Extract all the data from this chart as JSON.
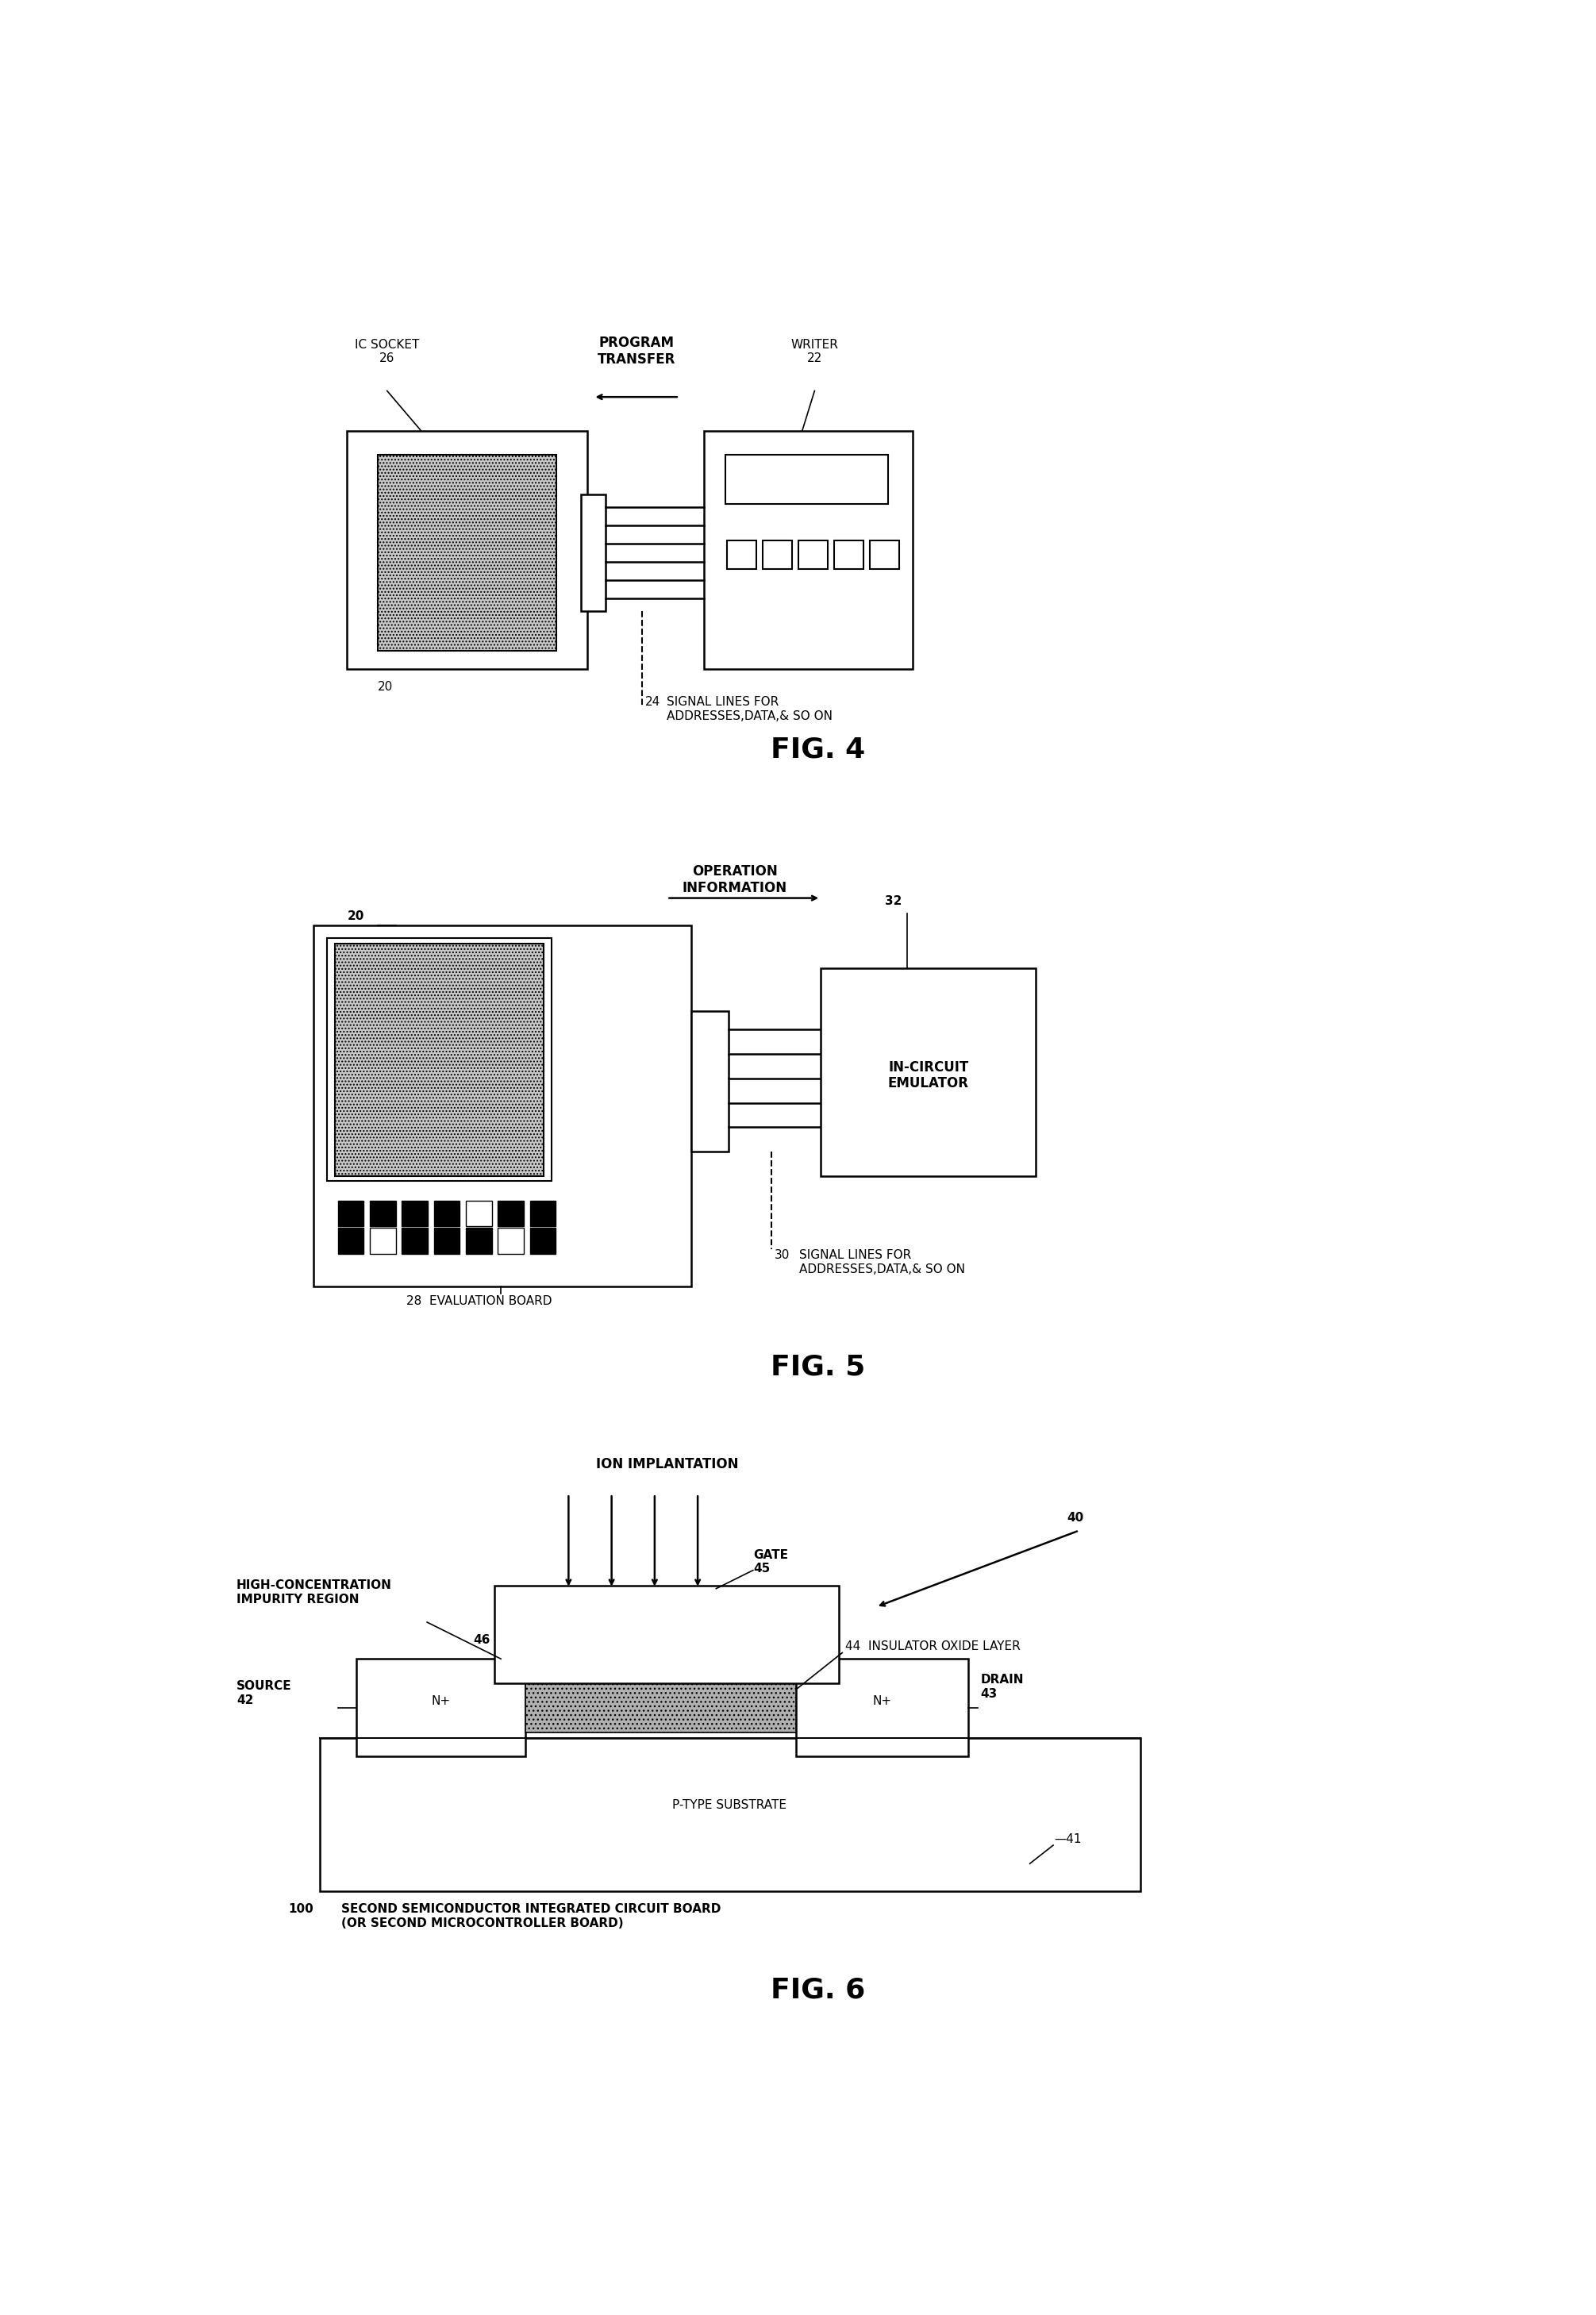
{
  "bg_color": "#ffffff",
  "fig_width": 20.11,
  "fig_height": 29.17,
  "lw": 1.8,
  "font_label": 11,
  "font_bold": 12,
  "font_title": 26,
  "font_num": 11,
  "fig4": {
    "title": "FIG. 4",
    "ic_socket_label": "IC SOCKET\n26",
    "writer_label": "WRITER\n22",
    "program_transfer_label": "PROGRAM\nTRANSFER",
    "signal_lines_label": "SIGNAL LINES FOR\nADDRESSES,DATA,& SO ON",
    "signal_num": "24",
    "board_num": "20"
  },
  "fig5": {
    "title": "FIG. 5",
    "board_num": "20",
    "op_info_label": "OPERATION\nINFORMATION",
    "emulator_num": "32",
    "emulator_label": "IN-CIRCUIT\nEMULATOR",
    "signal_lines_label": "SIGNAL LINES FOR\nADDRESSES,DATA,& SO ON",
    "signal_num": "30",
    "eval_board_label": "28  EVALUATION BOARD"
  },
  "fig6": {
    "title": "FIG. 6",
    "ion_label": "ION IMPLANTATION",
    "high_conc_label": "HIGH-CONCENTRATION\nIMPURITY REGION",
    "gate_label": "GATE\n45",
    "insulator_label": "44  INSULATOR OXIDE LAYER",
    "source_label": "SOURCE\n42",
    "drain_label": "DRAIN\n43",
    "substrate_label": "P-TYPE SUBSTRATE",
    "substrate_num": "41",
    "num_46": "46",
    "num_40": "40",
    "num_100": "100",
    "board_label": "SECOND SEMICONDUCTOR INTEGRATED CIRCUIT BOARD\n(OR SECOND MICROCONTROLLER BOARD)"
  }
}
